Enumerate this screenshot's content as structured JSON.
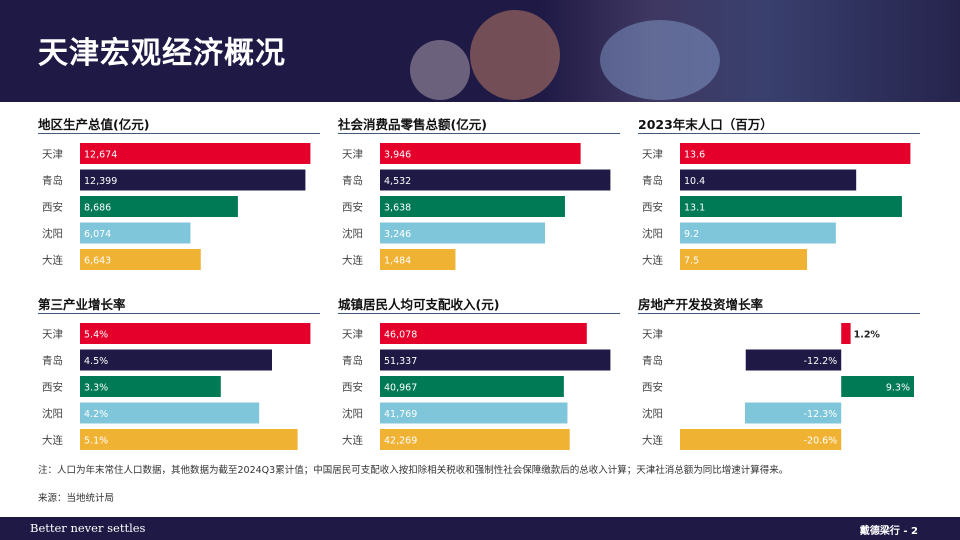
{
  "header": {
    "title": "天津宏观经济概况"
  },
  "colors": {
    "天津": "#e4002b",
    "青岛": "#1f1a45",
    "西安": "#007a55",
    "沈阳": "#7fc6da",
    "大连": "#f0b233"
  },
  "charts": [
    {
      "title": "地区生产总值(亿元)",
      "chart_data": {
        "type": "bar",
        "orientation": "horizontal",
        "categories": [
          "天津",
          "青岛",
          "西安",
          "沈阳",
          "大连"
        ],
        "values": [
          12674,
          12399,
          8686,
          6074,
          6643
        ],
        "labels": [
          "12,674",
          "12,399",
          "8,686",
          "6,074",
          "6,643"
        ]
      }
    },
    {
      "title": "社会消费品零售总额(亿元)",
      "chart_data": {
        "type": "bar",
        "orientation": "horizontal",
        "categories": [
          "天津",
          "青岛",
          "西安",
          "沈阳",
          "大连"
        ],
        "values": [
          3946,
          4532,
          3638,
          3246,
          1484
        ],
        "labels": [
          "3,946",
          "4,532",
          "3,638",
          "3,246",
          "1,484"
        ]
      }
    },
    {
      "title": "2023年末人口（百万）",
      "chart_data": {
        "type": "bar",
        "orientation": "horizontal",
        "categories": [
          "天津",
          "青岛",
          "西安",
          "沈阳",
          "大连"
        ],
        "values": [
          13.6,
          10.4,
          13.1,
          9.2,
          7.5
        ],
        "labels": [
          "13.6",
          "10.4",
          "13.1",
          "9.2",
          "7.5"
        ]
      }
    },
    {
      "title": "第三产业增长率",
      "chart_data": {
        "type": "bar",
        "orientation": "horizontal",
        "categories": [
          "天津",
          "青岛",
          "西安",
          "沈阳",
          "大连"
        ],
        "values": [
          5.4,
          4.5,
          3.3,
          4.2,
          5.1
        ],
        "labels": [
          "5.4%",
          "4.5%",
          "3.3%",
          "4.2%",
          "5.1%"
        ]
      }
    },
    {
      "title": "城镇居民人均可支配收入(元)",
      "chart_data": {
        "type": "bar",
        "orientation": "horizontal",
        "categories": [
          "天津",
          "青岛",
          "西安",
          "沈阳",
          "大连"
        ],
        "values": [
          46078,
          51337,
          40967,
          41769,
          42269
        ],
        "labels": [
          "46,078",
          "51,337",
          "40,967",
          "41,769",
          "42,269"
        ]
      }
    },
    {
      "title": "房地产开发投资增长率",
      "chart_data": {
        "type": "bar",
        "orientation": "horizontal",
        "categories": [
          "天津",
          "青岛",
          "西安",
          "沈阳",
          "大连"
        ],
        "values": [
          1.2,
          -12.2,
          9.3,
          -12.3,
          -20.6
        ],
        "labels": [
          "1.2%",
          "-12.2%",
          "9.3%",
          "-12.3%",
          "-20.6%"
        ]
      }
    }
  ],
  "notes": {
    "note": "注：人口为年末常住人口数据，其他数据为截至2024Q3累计值；中国居民可支配收入按扣除相关税收和强制性社会保障缴款后的总收入计算；天津社消总额为同比增速计算得来。",
    "source": "来源：当地统计局"
  },
  "footer": {
    "tagline": "Better never settles",
    "page": "戴德梁行 - 2"
  }
}
